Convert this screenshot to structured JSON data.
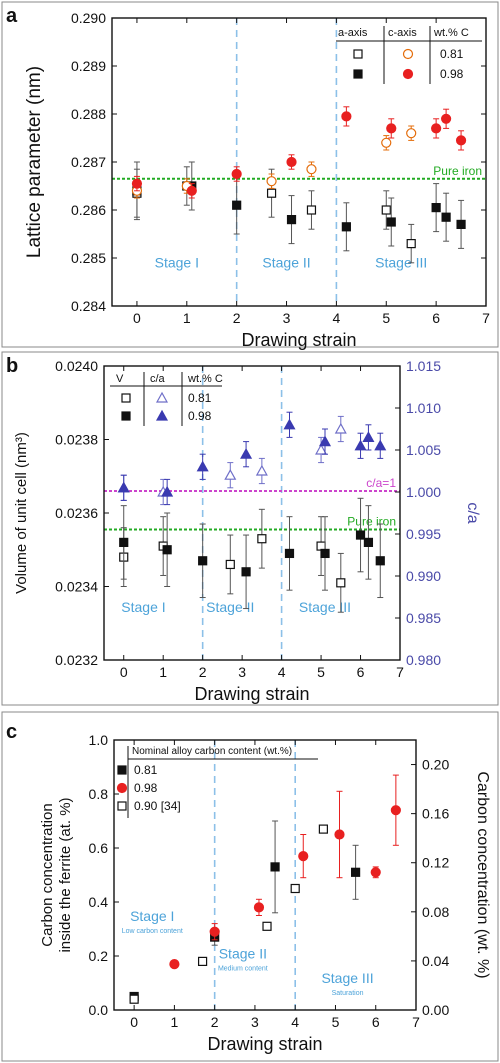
{
  "chart_data": [
    {
      "type": "scatter",
      "panel_label": "a",
      "xlabel": "Drawing strain",
      "ylabel": "Lattice parameter (nm)",
      "xlim": [
        -0.5,
        7
      ],
      "ylim": [
        0.284,
        0.29
      ],
      "xticks": [
        0,
        1,
        2,
        3,
        4,
        5,
        6,
        7
      ],
      "yticks": [
        0.284,
        0.285,
        0.286,
        0.287,
        0.288,
        0.289,
        0.29
      ],
      "ytick_labels": [
        "0.284",
        "0.285",
        "0.286",
        "0.287",
        "0.288",
        "0.289",
        "0.290"
      ],
      "legend": {
        "headers": [
          "a-axis",
          "c-axis",
          "wt.% C"
        ],
        "rows": [
          "0.81",
          "0.98"
        ],
        "placement": "top-right"
      },
      "reference_line": {
        "label": "Pure iron",
        "value": 0.28665,
        "color": "#22aa22"
      },
      "stage_dividers": [
        2,
        4
      ],
      "stages": [
        {
          "label": "Stage I",
          "x": 0.8,
          "y": 0.2848
        },
        {
          "label": "Stage II",
          "x": 3.0,
          "y": 0.2848
        },
        {
          "label": "Stage III",
          "x": 5.3,
          "y": 0.2848
        }
      ],
      "series": [
        {
          "group": "0.81",
          "axis": "a",
          "marker": "square",
          "filled": false,
          "color": "#111111",
          "points": [
            [
              0,
              0.28635,
              0.0005
            ],
            [
              1,
              0.2865,
              0.0004
            ],
            [
              2.7,
              0.28635,
              0.0005
            ],
            [
              3.5,
              0.286,
              0.0004
            ],
            [
              5.0,
              0.286,
              0.0004
            ],
            [
              5.5,
              0.2853,
              0.0004
            ]
          ]
        },
        {
          "group": "0.98",
          "axis": "a",
          "marker": "square",
          "filled": true,
          "color": "#111111",
          "points": [
            [
              0,
              0.2864,
              0.0006
            ],
            [
              1.1,
              0.2865,
              0.0005
            ],
            [
              2,
              0.2861,
              0.0006
            ],
            [
              3.1,
              0.2858,
              0.0005
            ],
            [
              4.2,
              0.28565,
              0.0005
            ],
            [
              5.1,
              0.28575,
              0.0005
            ],
            [
              6.0,
              0.28605,
              0.0005
            ],
            [
              6.2,
              0.28585,
              0.0005
            ],
            [
              6.5,
              0.2857,
              0.0005
            ]
          ]
        },
        {
          "group": "0.81",
          "axis": "c",
          "marker": "circle",
          "filled": false,
          "color": "#e46c0a",
          "points": [
            [
              0,
              0.2864,
              0.00015
            ],
            [
              1,
              0.2865,
              0.00015
            ],
            [
              2.7,
              0.2866,
              0.00015
            ],
            [
              3.5,
              0.28685,
              0.00015
            ],
            [
              5.0,
              0.2874,
              0.00015
            ],
            [
              5.5,
              0.2876,
              0.00015
            ]
          ]
        },
        {
          "group": "0.98",
          "axis": "c",
          "marker": "circle",
          "filled": true,
          "color": "#e82020",
          "points": [
            [
              0,
              0.28655,
              0.00015
            ],
            [
              1.1,
              0.2864,
              0.00015
            ],
            [
              2,
              0.28675,
              0.00015
            ],
            [
              3.1,
              0.287,
              0.00015
            ],
            [
              4.2,
              0.28795,
              0.0002
            ],
            [
              5.1,
              0.2877,
              0.0002
            ],
            [
              6.0,
              0.2877,
              0.0002
            ],
            [
              6.2,
              0.2879,
              0.0002
            ],
            [
              6.5,
              0.28745,
              0.0002
            ]
          ]
        }
      ]
    },
    {
      "type": "scatter",
      "panel_label": "b",
      "xlabel": "Drawing strain",
      "ylabel": "Volume of unit cell (nm³)",
      "y2label": "c/a",
      "xlim": [
        -0.5,
        7
      ],
      "ylim": [
        0.0232,
        0.024
      ],
      "y2lim": [
        0.98,
        1.015
      ],
      "xticks": [
        0,
        1,
        2,
        3,
        4,
        5,
        6,
        7
      ],
      "yticks": [
        0.0232,
        0.0234,
        0.0236,
        0.0238,
        0.024
      ],
      "ytick_labels": [
        "0.0232",
        "0.0234",
        "0.0236",
        "0.0238",
        "0.0240"
      ],
      "y2ticks": [
        0.98,
        0.985,
        0.99,
        0.995,
        1.0,
        1.005,
        1.01,
        1.015
      ],
      "y2tick_labels": [
        "0.980",
        "0.985",
        "0.990",
        "0.995",
        "1.000",
        "1.005",
        "1.010",
        "1.015"
      ],
      "legend": {
        "headers": [
          "V",
          "c/a",
          "wt.% C"
        ],
        "rows": [
          "0.81",
          "0.98"
        ],
        "placement": "top-left"
      },
      "reference_lines": [
        {
          "label": "c/a=1",
          "value": 0.02366,
          "color": "#cc44cc"
        },
        {
          "label": "Pure iron",
          "value": 0.023555,
          "color": "#22aa22"
        }
      ],
      "stage_dividers": [
        2,
        4
      ],
      "stages": [
        {
          "label": "Stage I",
          "x": 0.5,
          "y": 0.02333
        },
        {
          "label": "Stage II",
          "x": 2.7,
          "y": 0.02333
        },
        {
          "label": "Stage III",
          "x": 5.1,
          "y": 0.02333
        }
      ],
      "series": [
        {
          "group": "0.81",
          "quantity": "V",
          "marker": "square",
          "filled": false,
          "color": "#111111",
          "points": [
            [
              0,
              0.02348,
              8e-05
            ],
            [
              1,
              0.02351,
              8e-05
            ],
            [
              2.7,
              0.02346,
              8e-05
            ],
            [
              3.5,
              0.02353,
              8e-05
            ],
            [
              5.0,
              0.02351,
              8e-05
            ],
            [
              5.5,
              0.02341,
              8e-05
            ]
          ]
        },
        {
          "group": "0.98",
          "quantity": "V",
          "marker": "square",
          "filled": true,
          "color": "#111111",
          "points": [
            [
              0,
              0.02352,
              0.0001
            ],
            [
              1.1,
              0.0235,
              0.0001
            ],
            [
              2,
              0.02347,
              0.0001
            ],
            [
              3.1,
              0.02344,
              0.0001
            ],
            [
              4.2,
              0.02349,
              0.0001
            ],
            [
              5.1,
              0.02349,
              0.0001
            ],
            [
              6.0,
              0.02354,
              0.0001
            ],
            [
              6.2,
              0.02352,
              0.0001
            ],
            [
              6.5,
              0.02347,
              0.0001
            ]
          ]
        },
        {
          "group": "0.81",
          "quantity": "c/a",
          "marker": "triangle",
          "filled": false,
          "color": "#6f6fc8",
          "points": [
            [
              0,
              1.0005,
              0.0015
            ],
            [
              1,
              1.0,
              0.0015
            ],
            [
              2.7,
              1.002,
              0.0015
            ],
            [
              3.5,
              1.0025,
              0.0015
            ],
            [
              5.0,
              1.005,
              0.0015
            ],
            [
              5.5,
              1.0075,
              0.0015
            ]
          ]
        },
        {
          "group": "0.98",
          "quantity": "c/a",
          "marker": "triangle",
          "filled": true,
          "color": "#3a3ab0",
          "points": [
            [
              0,
              1.0005,
              0.0015
            ],
            [
              1.1,
              1.0,
              0.0015
            ],
            [
              2,
              1.003,
              0.0015
            ],
            [
              3.1,
              1.0045,
              0.0015
            ],
            [
              4.2,
              1.008,
              0.0015
            ],
            [
              5.1,
              1.006,
              0.0015
            ],
            [
              6.0,
              1.0055,
              0.0015
            ],
            [
              6.2,
              1.0065,
              0.0015
            ],
            [
              6.5,
              1.0055,
              0.0015
            ]
          ]
        }
      ]
    },
    {
      "type": "scatter",
      "panel_label": "c",
      "xlabel": "Drawing strain",
      "ylabel": "Carbon concentration inside the ferrite (at. %)",
      "ylabel_lines": [
        "Carbon concentration",
        "inside the ferrite (at. %)"
      ],
      "y2label": "Carbon concentration (wt. %)",
      "xlim": [
        -0.5,
        7
      ],
      "ylim": [
        0.0,
        1.0
      ],
      "y2lim": [
        0.0,
        0.22
      ],
      "xticks": [
        0,
        1,
        2,
        3,
        4,
        5,
        6,
        7
      ],
      "yticks": [
        0.0,
        0.2,
        0.4,
        0.6,
        0.8,
        1.0
      ],
      "ytick_labels": [
        "0.0",
        "0.2",
        "0.4",
        "0.6",
        "0.8",
        "1.0"
      ],
      "y2ticks": [
        0.0,
        0.04,
        0.08,
        0.12,
        0.16,
        0.2
      ],
      "y2tick_labels": [
        "0.00",
        "0.04",
        "0.08",
        "0.12",
        "0.16",
        "0.20"
      ],
      "legend": {
        "title": "Nominal alloy carbon content (wt.%)",
        "entries": [
          "0.81",
          "0.98",
          "0.90 [34]"
        ],
        "placement": "top-left"
      },
      "stage_dividers": [
        2,
        4
      ],
      "stages": [
        {
          "label": "Stage I",
          "sublabel": "Low carbon content",
          "x": 0.45,
          "y": 0.33
        },
        {
          "label": "Stage II",
          "sublabel": "Medium content",
          "x": 2.7,
          "y": 0.19
        },
        {
          "label": "Stage III",
          "sublabel": "Saturation",
          "x": 5.3,
          "y": 0.1
        }
      ],
      "series": [
        {
          "name": "0.81",
          "marker": "square",
          "filled": true,
          "color": "#111111",
          "points": [
            [
              0,
              0.05,
              0.01
            ],
            [
              2,
              0.27,
              0.03
            ],
            [
              3.5,
              0.53,
              0.17
            ],
            [
              5.5,
              0.51,
              0.1
            ]
          ]
        },
        {
          "name": "0.98",
          "marker": "circle",
          "filled": true,
          "color": "#e82020",
          "points": [
            [
              1,
              0.17,
              0
            ],
            [
              2,
              0.29,
              0.03
            ],
            [
              3.1,
              0.38,
              0.03
            ],
            [
              4.2,
              0.57,
              0.08
            ],
            [
              5.1,
              0.65,
              0.16
            ],
            [
              6.0,
              0.51,
              0.02
            ],
            [
              6.5,
              0.74,
              0.13
            ]
          ]
        },
        {
          "name": "0.90 [34]",
          "marker": "square",
          "filled": false,
          "color": "#111111",
          "points": [
            [
              0,
              0.04,
              0
            ],
            [
              1.7,
              0.18,
              0
            ],
            [
              3.3,
              0.31,
              0
            ],
            [
              4.0,
              0.45,
              0
            ],
            [
              4.7,
              0.67,
              0
            ]
          ]
        }
      ]
    }
  ]
}
